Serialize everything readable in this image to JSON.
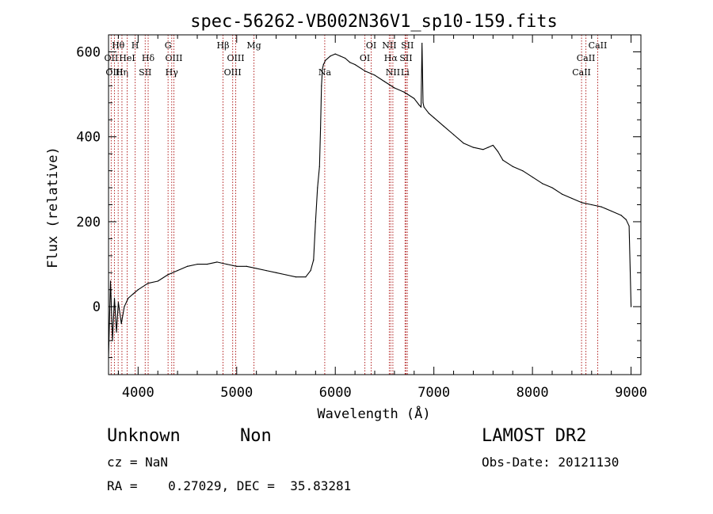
{
  "chart_data": {
    "type": "line",
    "title": "spec-56262-VB002N36V1_sp10-159.fits",
    "xlabel": "Wavelength (Å)",
    "ylabel": "Flux (relative)",
    "xlim": [
      3700,
      9100
    ],
    "ylim": [
      -160,
      640
    ],
    "xticks": [
      4000,
      5000,
      6000,
      7000,
      8000,
      9000
    ],
    "yticks": [
      0,
      200,
      400,
      600
    ],
    "grid": false,
    "series": [
      {
        "x": [
          3700,
          3720,
          3740,
          3760,
          3780,
          3800,
          3830,
          3860,
          3900,
          3950,
          4000,
          4100,
          4200,
          4300,
          4400,
          4500,
          4600,
          4700,
          4800,
          4900,
          5000,
          5100,
          5200,
          5300,
          5400,
          5500,
          5600,
          5700,
          5750,
          5780,
          5800,
          5820,
          5840,
          5850,
          5860,
          5870,
          5880,
          5900,
          5950,
          6000,
          6050,
          6100,
          6150,
          6200,
          6300,
          6400,
          6500,
          6600,
          6700,
          6800,
          6850,
          6870,
          6880,
          6890,
          6900,
          6950,
          7000,
          7100,
          7200,
          7300,
          7400,
          7500,
          7550,
          7600,
          7650,
          7700,
          7800,
          7900,
          8000,
          8100,
          8200,
          8300,
          8400,
          8500,
          8600,
          8700,
          8800,
          8900,
          8950,
          8980,
          9000
        ],
        "y": [
          -120,
          60,
          -80,
          20,
          -60,
          10,
          -40,
          0,
          20,
          30,
          40,
          55,
          60,
          75,
          85,
          95,
          100,
          100,
          105,
          100,
          95,
          95,
          90,
          85,
          80,
          75,
          70,
          70,
          85,
          110,
          200,
          280,
          330,
          420,
          520,
          560,
          570,
          580,
          590,
          595,
          590,
          585,
          575,
          570,
          555,
          545,
          530,
          515,
          505,
          490,
          475,
          470,
          620,
          480,
          470,
          455,
          445,
          425,
          405,
          385,
          375,
          370,
          375,
          380,
          365,
          345,
          330,
          320,
          305,
          290,
          280,
          265,
          255,
          245,
          240,
          235,
          225,
          215,
          205,
          190,
          0
        ]
      }
    ],
    "lines": [
      {
        "label": "Hθ",
        "x": 3798,
        "row": 0
      },
      {
        "label": "OII",
        "x": 3727,
        "row": 1
      },
      {
        "label": "OIII",
        "x": 3760,
        "row": 2
      },
      {
        "label": "Hη",
        "x": 3836,
        "row": 2
      },
      {
        "label": "H",
        "x": 3970,
        "row": 0
      },
      {
        "label": "HeI",
        "x": 3889,
        "row": 1
      },
      {
        "label": "Hδ",
        "x": 4102,
        "row": 1
      },
      {
        "label": "SII",
        "x": 4072,
        "row": 2
      },
      {
        "label": "G",
        "x": 4304,
        "row": 0
      },
      {
        "label": "OIII",
        "x": 4363,
        "row": 1
      },
      {
        "label": "Hγ",
        "x": 4341,
        "row": 2
      },
      {
        "label": "Hβ",
        "x": 4861,
        "row": 0
      },
      {
        "label": "OIII",
        "x": 4990,
        "row": 1
      },
      {
        "label": "OIII",
        "x": 4959,
        "row": 2
      },
      {
        "label": "Mg",
        "x": 5175,
        "row": 0
      },
      {
        "label": "Na",
        "x": 5893,
        "row": 2
      },
      {
        "label": "OI",
        "x": 6364,
        "row": 0
      },
      {
        "label": "OI",
        "x": 6300,
        "row": 1
      },
      {
        "label": "NII",
        "x": 6548,
        "row": 0
      },
      {
        "label": "SII",
        "x": 6731,
        "row": 0
      },
      {
        "label": "Hα",
        "x": 6563,
        "row": 1
      },
      {
        "label": "SII",
        "x": 6717,
        "row": 1
      },
      {
        "label": "NII",
        "x": 6584,
        "row": 2
      },
      {
        "label": "Li",
        "x": 6708,
        "row": 2
      },
      {
        "label": "CaII",
        "x": 8662,
        "row": 0
      },
      {
        "label": "CaII",
        "x": 8542,
        "row": 1
      },
      {
        "label": "CaII",
        "x": 8498,
        "row": 2
      }
    ]
  },
  "info": {
    "class_label": "Unknown",
    "subclass_label": "Non",
    "survey_label": "LAMOST DR2",
    "cz_text": "cz = NaN",
    "obs_date_text": "Obs-Date: 20121130",
    "radec_text": "RA =    0.27029, DEC =  35.83281"
  },
  "colors": {
    "spectrum": "#000000",
    "line_markers": "#b22222",
    "axes": "#000000",
    "background": "#ffffff"
  }
}
